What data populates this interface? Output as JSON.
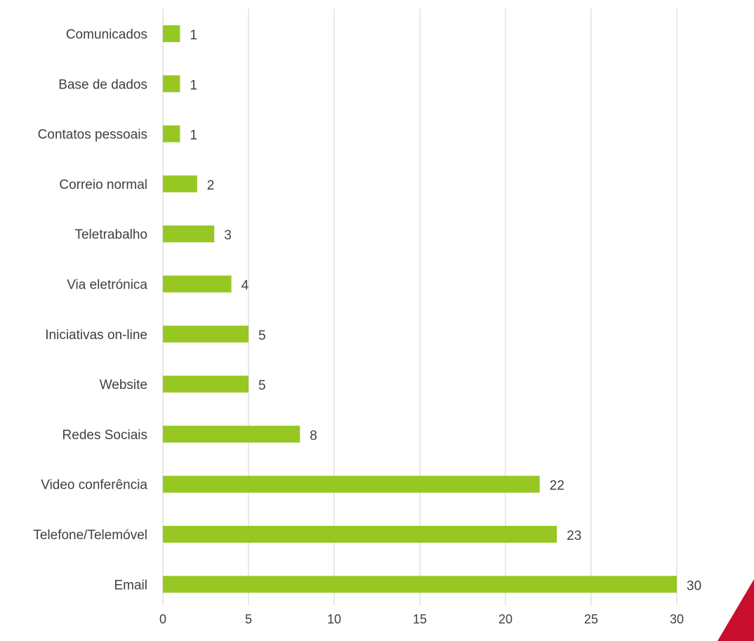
{
  "chart_data": {
    "type": "bar",
    "orientation": "horizontal",
    "categories": [
      "Comunicados",
      "Base de dados",
      "Contatos pessoais",
      "Correio normal",
      "Teletrabalho",
      "Via eletrónica",
      "Iniciativas on-line",
      "Website",
      "Redes Sociais",
      "Video conferência",
      "Telefone/Telemóvel",
      "Email"
    ],
    "values": [
      1,
      1,
      1,
      2,
      3,
      4,
      5,
      5,
      8,
      22,
      23,
      30
    ],
    "title": "",
    "xlabel": "",
    "ylabel": "",
    "xlim": [
      0,
      30
    ],
    "xticks": [
      0,
      5,
      10,
      15,
      20,
      25,
      30
    ],
    "grid": true,
    "data_labels": true,
    "legend": "none",
    "bar_color": "#97c723",
    "gridline_color": "#d9d9d9",
    "text_color": "#404040",
    "corner_decoration_color": "#c8102e"
  }
}
